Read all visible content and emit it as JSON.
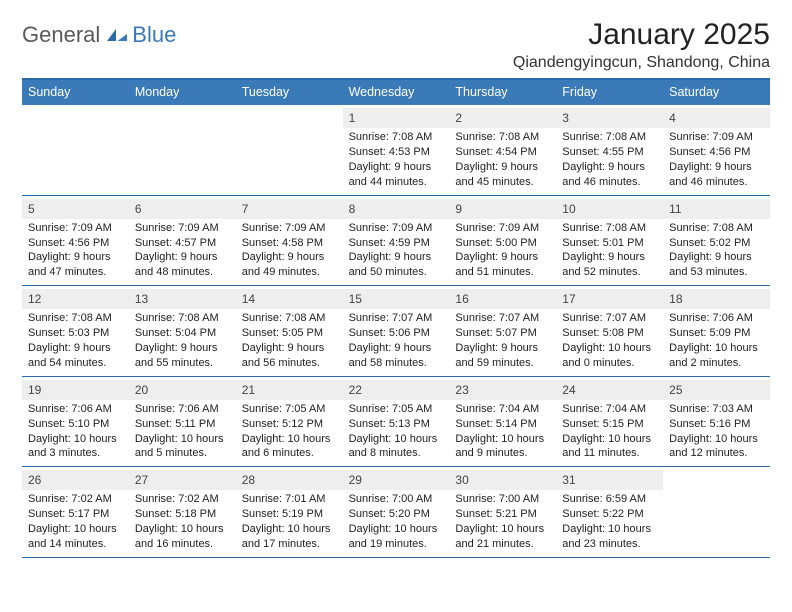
{
  "logo": {
    "text1": "General",
    "text2": "Blue",
    "color1": "#5a5a5a",
    "color2": "#3a7ab8"
  },
  "title": "January 2025",
  "location": "Qiandengyingcun, Shandong, China",
  "weekdays": [
    "Sunday",
    "Monday",
    "Tuesday",
    "Wednesday",
    "Thursday",
    "Friday",
    "Saturday"
  ],
  "header_bg": "#3a7ab8",
  "header_border": "#2a6aa8",
  "daynum_bg": "#eeeeee",
  "font_size_body": 11,
  "days": [
    {
      "n": "",
      "empty": true
    },
    {
      "n": "",
      "empty": true
    },
    {
      "n": "",
      "empty": true
    },
    {
      "n": "1",
      "sunrise": "7:08 AM",
      "sunset": "4:53 PM",
      "day_h": 9,
      "day_m": 44
    },
    {
      "n": "2",
      "sunrise": "7:08 AM",
      "sunset": "4:54 PM",
      "day_h": 9,
      "day_m": 45
    },
    {
      "n": "3",
      "sunrise": "7:08 AM",
      "sunset": "4:55 PM",
      "day_h": 9,
      "day_m": 46
    },
    {
      "n": "4",
      "sunrise": "7:09 AM",
      "sunset": "4:56 PM",
      "day_h": 9,
      "day_m": 46
    },
    {
      "n": "5",
      "sunrise": "7:09 AM",
      "sunset": "4:56 PM",
      "day_h": 9,
      "day_m": 47
    },
    {
      "n": "6",
      "sunrise": "7:09 AM",
      "sunset": "4:57 PM",
      "day_h": 9,
      "day_m": 48
    },
    {
      "n": "7",
      "sunrise": "7:09 AM",
      "sunset": "4:58 PM",
      "day_h": 9,
      "day_m": 49
    },
    {
      "n": "8",
      "sunrise": "7:09 AM",
      "sunset": "4:59 PM",
      "day_h": 9,
      "day_m": 50
    },
    {
      "n": "9",
      "sunrise": "7:09 AM",
      "sunset": "5:00 PM",
      "day_h": 9,
      "day_m": 51
    },
    {
      "n": "10",
      "sunrise": "7:08 AM",
      "sunset": "5:01 PM",
      "day_h": 9,
      "day_m": 52
    },
    {
      "n": "11",
      "sunrise": "7:08 AM",
      "sunset": "5:02 PM",
      "day_h": 9,
      "day_m": 53
    },
    {
      "n": "12",
      "sunrise": "7:08 AM",
      "sunset": "5:03 PM",
      "day_h": 9,
      "day_m": 54
    },
    {
      "n": "13",
      "sunrise": "7:08 AM",
      "sunset": "5:04 PM",
      "day_h": 9,
      "day_m": 55
    },
    {
      "n": "14",
      "sunrise": "7:08 AM",
      "sunset": "5:05 PM",
      "day_h": 9,
      "day_m": 56
    },
    {
      "n": "15",
      "sunrise": "7:07 AM",
      "sunset": "5:06 PM",
      "day_h": 9,
      "day_m": 58
    },
    {
      "n": "16",
      "sunrise": "7:07 AM",
      "sunset": "5:07 PM",
      "day_h": 9,
      "day_m": 59
    },
    {
      "n": "17",
      "sunrise": "7:07 AM",
      "sunset": "5:08 PM",
      "day_h": 10,
      "day_m": 0
    },
    {
      "n": "18",
      "sunrise": "7:06 AM",
      "sunset": "5:09 PM",
      "day_h": 10,
      "day_m": 2
    },
    {
      "n": "19",
      "sunrise": "7:06 AM",
      "sunset": "5:10 PM",
      "day_h": 10,
      "day_m": 3
    },
    {
      "n": "20",
      "sunrise": "7:06 AM",
      "sunset": "5:11 PM",
      "day_h": 10,
      "day_m": 5
    },
    {
      "n": "21",
      "sunrise": "7:05 AM",
      "sunset": "5:12 PM",
      "day_h": 10,
      "day_m": 6
    },
    {
      "n": "22",
      "sunrise": "7:05 AM",
      "sunset": "5:13 PM",
      "day_h": 10,
      "day_m": 8
    },
    {
      "n": "23",
      "sunrise": "7:04 AM",
      "sunset": "5:14 PM",
      "day_h": 10,
      "day_m": 9
    },
    {
      "n": "24",
      "sunrise": "7:04 AM",
      "sunset": "5:15 PM",
      "day_h": 10,
      "day_m": 11
    },
    {
      "n": "25",
      "sunrise": "7:03 AM",
      "sunset": "5:16 PM",
      "day_h": 10,
      "day_m": 12
    },
    {
      "n": "26",
      "sunrise": "7:02 AM",
      "sunset": "5:17 PM",
      "day_h": 10,
      "day_m": 14
    },
    {
      "n": "27",
      "sunrise": "7:02 AM",
      "sunset": "5:18 PM",
      "day_h": 10,
      "day_m": 16
    },
    {
      "n": "28",
      "sunrise": "7:01 AM",
      "sunset": "5:19 PM",
      "day_h": 10,
      "day_m": 17
    },
    {
      "n": "29",
      "sunrise": "7:00 AM",
      "sunset": "5:20 PM",
      "day_h": 10,
      "day_m": 19
    },
    {
      "n": "30",
      "sunrise": "7:00 AM",
      "sunset": "5:21 PM",
      "day_h": 10,
      "day_m": 21
    },
    {
      "n": "31",
      "sunrise": "6:59 AM",
      "sunset": "5:22 PM",
      "day_h": 10,
      "day_m": 23
    },
    {
      "n": "",
      "empty": true
    }
  ]
}
